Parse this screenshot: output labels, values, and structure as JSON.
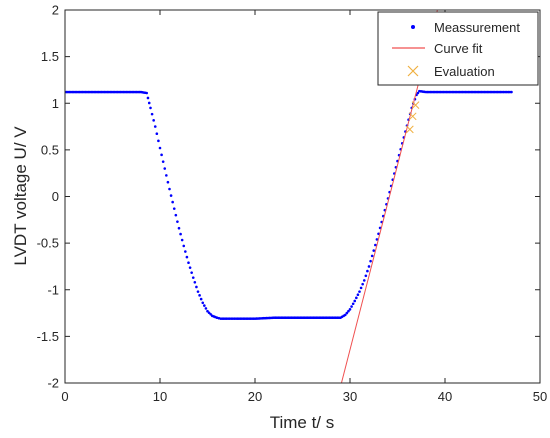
{
  "chart_data": {
    "type": "scatter",
    "title": "",
    "xlabel": "Time t/ s",
    "ylabel": "LVDT voltage U/ V",
    "xlim": [
      0,
      50
    ],
    "ylim": [
      -2,
      2
    ],
    "x_ticks": [
      0,
      10,
      20,
      30,
      40,
      50
    ],
    "x_tick_labels": [
      "0",
      "10",
      "20",
      "30",
      "40",
      "50"
    ],
    "y_ticks": [
      2,
      1.5,
      1,
      0.5,
      0,
      -0.5,
      -1,
      -1.5,
      -2
    ],
    "y_tick_labels": [
      "2",
      "1.5",
      "1",
      "0.5",
      "0",
      "-0.5",
      "-1",
      "-1.5",
      "-2"
    ],
    "grid": false,
    "legend_position": "top-right",
    "series": [
      {
        "name": "Meassurement",
        "kind": "points",
        "color": "#0000ff",
        "x": [
          0,
          2,
          4,
          6,
          8,
          8.6,
          9.0,
          9.5,
          10,
          10.5,
          11,
          11.5,
          12,
          12.5,
          13,
          13.5,
          14,
          14.5,
          15,
          15.5,
          16,
          16.4,
          17,
          18,
          20,
          22,
          24,
          26,
          28,
          29,
          29.5,
          30,
          30.5,
          31,
          31.5,
          32,
          32.5,
          33,
          33.5,
          34,
          34.5,
          35,
          35.5,
          36,
          36.5,
          37,
          37.3,
          38,
          40,
          42,
          44,
          46,
          47
        ],
        "y": [
          1.12,
          1.12,
          1.12,
          1.12,
          1.12,
          1.11,
          0.95,
          0.75,
          0.52,
          0.3,
          0.08,
          -0.13,
          -0.34,
          -0.53,
          -0.71,
          -0.87,
          -1.02,
          -1.14,
          -1.23,
          -1.28,
          -1.3,
          -1.31,
          -1.31,
          -1.31,
          -1.31,
          -1.3,
          -1.3,
          -1.3,
          -1.3,
          -1.3,
          -1.27,
          -1.21,
          -1.12,
          -1.02,
          -0.9,
          -0.75,
          -0.58,
          -0.4,
          -0.21,
          -0.02,
          0.18,
          0.38,
          0.57,
          0.76,
          0.95,
          1.09,
          1.13,
          1.12,
          1.12,
          1.12,
          1.12,
          1.12,
          1.12
        ]
      },
      {
        "name": "Curve fit",
        "kind": "line",
        "color": "#f05050",
        "x": [
          29.1,
          39.2
        ],
        "y": [
          -2,
          2
        ]
      },
      {
        "name": "Evaluation",
        "kind": "markers",
        "color": "#f0b040",
        "x": [
          36.3,
          36.6,
          36.9
        ],
        "y": [
          0.72,
          0.86,
          0.98
        ]
      }
    ]
  }
}
